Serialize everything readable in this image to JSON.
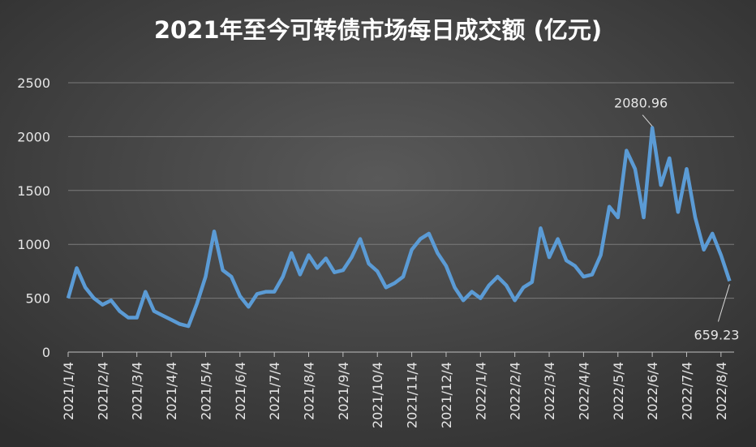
{
  "chart_data": {
    "type": "line",
    "title": "2021年至今可转债市场每日成交额 (亿元)",
    "categories": [
      "2021/1/4",
      null,
      null,
      null,
      "2021/2/4",
      null,
      null,
      null,
      "2021/3/4",
      null,
      null,
      null,
      "2021/4/4",
      null,
      null,
      null,
      "2021/5/4",
      null,
      null,
      null,
      "2021/6/4",
      null,
      null,
      null,
      "2021/7/4",
      null,
      null,
      null,
      "2021/8/4",
      null,
      null,
      null,
      "2021/9/4",
      null,
      null,
      null,
      "2021/10/4",
      null,
      null,
      null,
      "2021/11/4",
      null,
      null,
      null,
      "2021/12/4",
      null,
      null,
      null,
      "2022/1/4",
      null,
      null,
      null,
      "2022/2/4",
      null,
      null,
      null,
      "2022/3/4",
      null,
      null,
      null,
      "2022/4/4",
      null,
      null,
      null,
      "2022/5/4",
      null,
      null,
      null,
      "2022/6/4",
      null,
      null,
      null,
      "2022/7/4",
      null,
      null,
      null,
      "2022/8/4",
      null
    ],
    "series": [
      {
        "name": "成交额",
        "color": "#5b9bd5",
        "values": [
          500,
          780,
          600,
          500,
          440,
          480,
          380,
          320,
          320,
          560,
          380,
          340,
          300,
          260,
          240,
          450,
          700,
          1120,
          760,
          700,
          520,
          420,
          540,
          560,
          560,
          700,
          920,
          720,
          900,
          780,
          870,
          740,
          760,
          880,
          1050,
          820,
          750,
          600,
          640,
          700,
          950,
          1050,
          1100,
          920,
          800,
          600,
          480,
          560,
          500,
          620,
          700,
          620,
          480,
          600,
          650,
          1150,
          880,
          1050,
          850,
          800,
          700,
          720,
          900,
          1350,
          1250,
          1870,
          1700,
          1250,
          2080.96,
          1550,
          1800,
          1300,
          1700,
          1250,
          950,
          1100,
          900,
          659.23
        ]
      }
    ],
    "ylim": [
      0,
      2500
    ],
    "yticks": [
      0,
      500,
      1000,
      1500,
      2000,
      2500
    ],
    "grid": true
  }
}
